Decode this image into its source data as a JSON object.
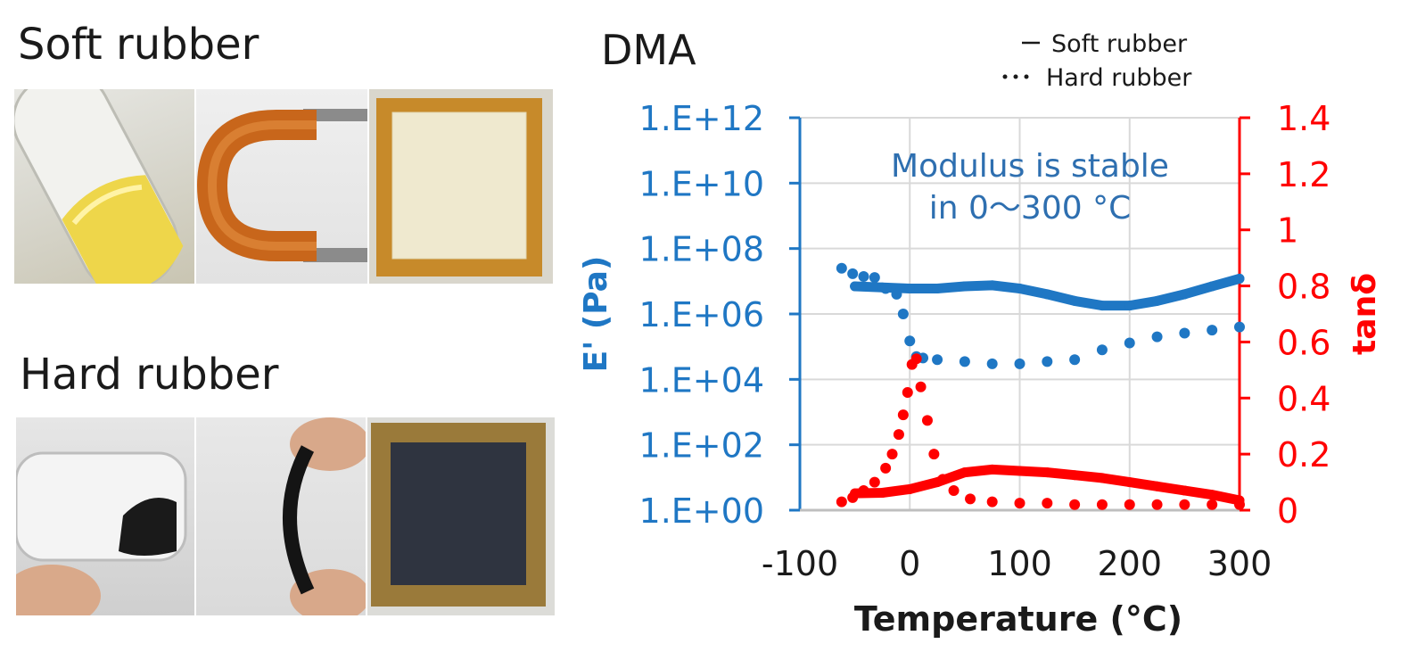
{
  "left_panel": {
    "soft_rubber_heading": "Soft rubber",
    "hard_rubber_heading": "Hard rubber"
  },
  "chart_data": {
    "type": "scatter",
    "title": "DMA",
    "xlabel": "Temperature (°C)",
    "ylabel_left": "E' (Pa)",
    "ylabel_right": "tanδ",
    "xlim": [
      -100,
      300
    ],
    "ylim_left": [
      1,
      1000000000000.0
    ],
    "ylim_right": [
      0,
      1.4
    ],
    "y_left_scale": "log",
    "x_ticks": [
      "-100",
      "0",
      "100",
      "200",
      "300"
    ],
    "y_left_ticks": [
      "1.E+00",
      "1.E+02",
      "1.E+04",
      "1.E+06",
      "1.E+08",
      "1.E+10",
      "1.E+12"
    ],
    "y_right_ticks": [
      "0",
      "0.2",
      "0.4",
      "0.6",
      "0.8",
      "1",
      "1.2",
      "1.4"
    ],
    "grid": true,
    "legend_position": "top-right",
    "legend": [
      {
        "marker": "—",
        "label": "Soft rubber"
      },
      {
        "marker": "···",
        "label": "Hard rubber"
      }
    ],
    "annotation": [
      "Modulus is stable",
      "in 0～300 °C"
    ],
    "colors": {
      "modulus": "#1f77c4",
      "tan_delta": "#ff0000",
      "grid": "#d9d9d9"
    },
    "series": [
      {
        "label": "Soft rubber E'",
        "axis": "left",
        "style": "line",
        "x": [
          -50,
          -25,
          0,
          25,
          50,
          75,
          100,
          125,
          150,
          175,
          200,
          225,
          250,
          275,
          300
        ],
        "y": [
          7000000.0,
          6500000.0,
          6000000.0,
          6000000.0,
          7000000.0,
          7500000.0,
          6000000.0,
          4000000.0,
          2500000.0,
          1800000.0,
          1800000.0,
          2500000.0,
          4000000.0,
          7000000.0,
          12000000.0
        ]
      },
      {
        "label": "Hard rubber E'",
        "axis": "left",
        "style": "dotted",
        "x": [
          -62,
          -52,
          -42,
          -32,
          -22,
          -12,
          -6,
          0,
          6,
          12,
          25,
          50,
          75,
          100,
          125,
          150,
          175,
          200,
          225,
          250,
          275,
          300
        ],
        "y": [
          25000000.0,
          17000000.0,
          14000000.0,
          13000000.0,
          6000000.0,
          4000000.0,
          1000000.0,
          150000.0,
          50000.0,
          45000.0,
          40000.0,
          35000.0,
          30000.0,
          30000.0,
          35000.0,
          40000.0,
          80000.0,
          130000.0,
          200000.0,
          260000.0,
          320000.0,
          400000.0
        ]
      },
      {
        "label": "Soft rubber tanδ",
        "axis": "right",
        "style": "line",
        "x": [
          -50,
          -25,
          0,
          25,
          50,
          75,
          100,
          125,
          150,
          175,
          200,
          225,
          250,
          275,
          300
        ],
        "y": [
          0.06,
          0.062,
          0.075,
          0.1,
          0.135,
          0.145,
          0.14,
          0.135,
          0.125,
          0.115,
          0.1,
          0.085,
          0.07,
          0.055,
          0.035
        ]
      },
      {
        "label": "Hard rubber tanδ",
        "axis": "right",
        "style": "dotted",
        "x": [
          -62,
          -52,
          -42,
          -32,
          -22,
          -16,
          -10,
          -6,
          -2,
          2,
          6,
          10,
          16,
          22,
          30,
          40,
          55,
          75,
          100,
          125,
          150,
          175,
          200,
          225,
          250,
          275,
          300
        ],
        "y": [
          0.03,
          0.045,
          0.07,
          0.1,
          0.15,
          0.2,
          0.27,
          0.34,
          0.42,
          0.52,
          0.54,
          0.44,
          0.32,
          0.2,
          0.11,
          0.07,
          0.04,
          0.03,
          0.025,
          0.025,
          0.02,
          0.02,
          0.02,
          0.02,
          0.02,
          0.02,
          0.02
        ]
      }
    ]
  }
}
